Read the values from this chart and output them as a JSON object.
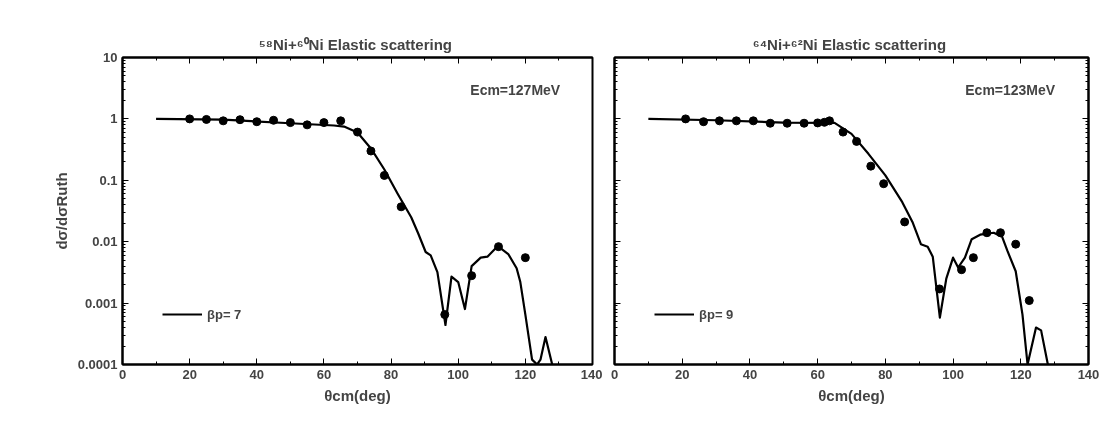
{
  "chart_data": [
    {
      "type": "scatter",
      "title": "⁵⁸Ni+⁶⁰Ni  Elastic scattering",
      "xlabel": "θcm(deg)",
      "ylabel": "dσ/dσRuth",
      "annotations": [
        "Ecm=127MeV"
      ],
      "log": "y",
      "xlim": [
        0,
        140
      ],
      "ylim": [
        0.0001,
        10
      ],
      "xticks": [
        0,
        20,
        40,
        60,
        80,
        100,
        120,
        140
      ],
      "yticks": [
        0.0001,
        0.001,
        0.01,
        0.1,
        1,
        10
      ],
      "grid": false,
      "legend": "bottom left",
      "series": [
        {
          "type": "line",
          "name": "βp= 7",
          "color": "#000000",
          "marker": "none",
          "line_style": "solid",
          "x": [
            10,
            30,
            50,
            63,
            66,
            70,
            74,
            78,
            82,
            86,
            88,
            90.3,
            91.8,
            93.8,
            96.2,
            98,
            100,
            102,
            104,
            106.7,
            108.7,
            111.8,
            114.9,
            117.4,
            118.5,
            120,
            122,
            123.5,
            124.5,
            126,
            128
          ],
          "values": [
            1.0,
            0.97,
            0.85,
            0.78,
            0.75,
            0.6,
            0.33,
            0.15,
            0.06,
            0.025,
            0.014,
            0.0068,
            0.006,
            0.0032,
            0.00044,
            0.0027,
            0.0022,
            0.0008,
            0.004,
            0.0055,
            0.0057,
            0.0085,
            0.0063,
            0.0037,
            0.0022,
            0.00065,
            0.00012,
            0.0001,
            0.00012,
            0.00028,
            0.0001
          ]
        },
        {
          "color": "#000000",
          "marker": "circle",
          "x": [
            20,
            25,
            30,
            35,
            40,
            45,
            50,
            55,
            60,
            65,
            70,
            74,
            78,
            83,
            96,
            104,
            112,
            120
          ],
          "values": [
            1.0,
            0.98,
            0.93,
            0.97,
            0.9,
            0.95,
            0.87,
            0.8,
            0.87,
            0.93,
            0.61,
            0.3,
            0.12,
            0.037,
            0.00065,
            0.0028,
            0.0083,
            0.0055
          ]
        }
      ]
    },
    {
      "type": "scatter",
      "title": "⁶⁴Ni+⁶²Ni  Elastic scattering",
      "xlabel": "θcm(deg)",
      "annotations": [
        "Ecm=123MeV"
      ],
      "log": "y",
      "xlim": [
        0,
        140
      ],
      "ylim": [
        0.0001,
        10
      ],
      "xticks": [
        0,
        20,
        40,
        60,
        80,
        100,
        120,
        140
      ],
      "yticks": [
        0.0001,
        0.001,
        0.01,
        0.1,
        1,
        10
      ],
      "tick_labels": "x",
      "grid": false,
      "legend": "bottom left",
      "series": [
        {
          "type": "line",
          "name": "βp= 9",
          "color": "#000000",
          "marker": "none",
          "line_style": "solid",
          "x": [
            10,
            30,
            50,
            63,
            65,
            70,
            75,
            80,
            85,
            88,
            90.5,
            92.5,
            94,
            96.1,
            98,
            100,
            101.5,
            103.5,
            105.5,
            108,
            112,
            114.5,
            116,
            118.5,
            120.5,
            122,
            124.5,
            126,
            128
          ],
          "values": [
            1.0,
            0.95,
            0.87,
            0.86,
            0.86,
            0.57,
            0.27,
            0.12,
            0.044,
            0.021,
            0.0091,
            0.0083,
            0.0057,
            0.00058,
            0.0025,
            0.0055,
            0.0038,
            0.0055,
            0.011,
            0.013,
            0.014,
            0.012,
            0.0072,
            0.0033,
            0.00065,
            0.0001,
            0.0004,
            0.00036,
            0.0001
          ]
        },
        {
          "color": "#000000",
          "marker": "circle",
          "x": [
            21,
            26.3,
            31,
            36,
            41,
            46,
            51,
            56,
            60,
            62,
            63.5,
            67.5,
            71.5,
            75.7,
            79.5,
            85.7,
            96,
            102.5,
            106,
            110,
            114,
            118.5,
            122.5
          ],
          "values": [
            1.0,
            0.9,
            0.93,
            0.93,
            0.93,
            0.85,
            0.85,
            0.85,
            0.86,
            0.88,
            0.93,
            0.61,
            0.43,
            0.17,
            0.088,
            0.021,
            0.0017,
            0.0035,
            0.0055,
            0.014,
            0.014,
            0.0091,
            0.0011
          ]
        }
      ]
    }
  ]
}
